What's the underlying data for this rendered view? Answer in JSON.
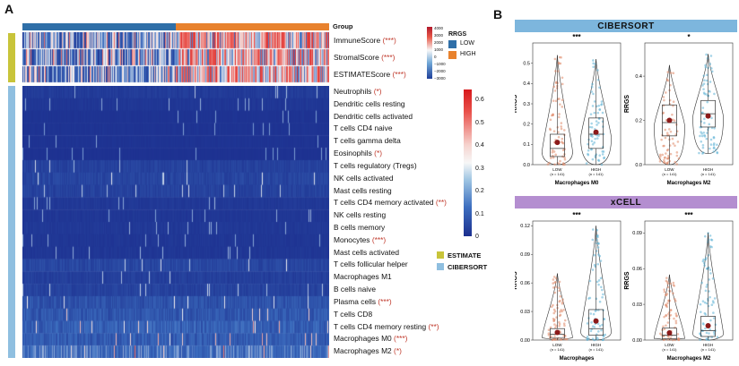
{
  "panel_a": {
    "letter": "A",
    "group_label": "Group",
    "score_rows": [
      {
        "name": "ImmuneScore",
        "sig": "(***)"
      },
      {
        "name": "StromalScore",
        "sig": "(***)"
      },
      {
        "name": "ESTIMATEScore",
        "sig": "(***)"
      }
    ],
    "cell_rows": [
      {
        "name": "Neutrophils",
        "sig": "(*)"
      },
      {
        "name": "Dendritic cells resting",
        "sig": ""
      },
      {
        "name": "Dendritic cells activated",
        "sig": ""
      },
      {
        "name": "T cells CD4 naive",
        "sig": ""
      },
      {
        "name": "T cells gamma delta",
        "sig": ""
      },
      {
        "name": "Eosinophils",
        "sig": "(*)"
      },
      {
        "name": "T cells regulatory (Tregs)",
        "sig": ""
      },
      {
        "name": "NK cells activated",
        "sig": ""
      },
      {
        "name": "Mast cells resting",
        "sig": ""
      },
      {
        "name": "T cells CD4 memory activated",
        "sig": "(**)"
      },
      {
        "name": "NK cells resting",
        "sig": ""
      },
      {
        "name": "B cells memory",
        "sig": ""
      },
      {
        "name": "Monocytes",
        "sig": "(***)"
      },
      {
        "name": "Mast cells activated",
        "sig": ""
      },
      {
        "name": "T cells follicular helper",
        "sig": ""
      },
      {
        "name": "Macrophages M1",
        "sig": ""
      },
      {
        "name": "B cells naive",
        "sig": ""
      },
      {
        "name": "Plasma cells",
        "sig": "(***)"
      },
      {
        "name": "T cells CD8",
        "sig": ""
      },
      {
        "name": "T cells CD4 memory resting",
        "sig": "(**)"
      },
      {
        "name": "Macrophages M0",
        "sig": "(***)"
      },
      {
        "name": "Macrophages M2",
        "sig": "(*)"
      }
    ],
    "rrgs_legend": {
      "title": "RRGS",
      "low": "LOW",
      "high": "HIGH",
      "low_color": "#2f6fa8",
      "high_color": "#e8822e"
    },
    "score_scale_ticks": [
      "4000",
      "3000",
      "2000",
      "1000",
      "0",
      "−1000",
      "−2000",
      "−3000"
    ],
    "cell_scale_ticks": [
      "0.6",
      "0.5",
      "0.4",
      "0.3",
      "0.2",
      "0.1",
      "0"
    ],
    "source_legend": [
      {
        "label": "ESTIMATE",
        "color": "#c8c43a"
      },
      {
        "label": "CIBERSORT",
        "color": "#8fbfe0"
      }
    ]
  },
  "panel_b": {
    "letter": "B",
    "cibersort_header": "CIBERSORT",
    "xcell_header": "xCELL",
    "cibersort_color": "#7db6dd",
    "xcell_color": "#b48ed0",
    "low_color": "#e08a6a",
    "high_color": "#5fb3d6",
    "x_categories": [
      "LOW",
      "HIGH"
    ],
    "n_labels": [
      "(n = 141)",
      "(n = 141)"
    ],
    "ylabel": "RRGS"
  },
  "chart_data": [
    {
      "type": "box",
      "title": "Macrophages M0",
      "group": "CIBERSORT",
      "significance": "***",
      "categories": [
        "LOW",
        "HIGH"
      ],
      "yticks": [
        "0.5",
        "0.4",
        "0.3",
        "0.2",
        "0.1",
        "0.0"
      ],
      "ylim": [
        0,
        0.6
      ],
      "median": [
        0.08,
        0.15
      ],
      "q1": [
        0.04,
        0.08
      ],
      "q3": [
        0.15,
        0.23
      ],
      "whisker_low": [
        0.0,
        0.0
      ],
      "whisker_high": [
        0.54,
        0.52
      ],
      "mean": [
        0.11,
        0.16
      ]
    },
    {
      "type": "box",
      "title": "Macrophages M2",
      "group": "CIBERSORT",
      "significance": "*",
      "categories": [
        "LOW",
        "HIGH"
      ],
      "yticks": [
        "0.4",
        "0.2",
        "0.0"
      ],
      "ylim": [
        0,
        0.55
      ],
      "median": [
        0.19,
        0.23
      ],
      "q1": [
        0.13,
        0.17
      ],
      "q3": [
        0.27,
        0.29
      ],
      "whisker_low": [
        0.0,
        0.05
      ],
      "whisker_high": [
        0.45,
        0.5
      ],
      "mean": [
        0.2,
        0.22
      ]
    },
    {
      "type": "box",
      "title": "Macrophages",
      "group": "xCELL",
      "significance": "***",
      "categories": [
        "LOW",
        "HIGH"
      ],
      "yticks": [
        "0.12",
        "0.09",
        "0.06",
        "0.03",
        "0.00"
      ],
      "ylim": [
        0,
        0.125
      ],
      "median": [
        0.006,
        0.012
      ],
      "q1": [
        0.002,
        0.005
      ],
      "q3": [
        0.012,
        0.032
      ],
      "whisker_low": [
        0.0,
        0.0
      ],
      "whisker_high": [
        0.07,
        0.12
      ],
      "mean": [
        0.008,
        0.02
      ]
    },
    {
      "type": "box",
      "title": "Macrophages M2",
      "group": "xCELL",
      "significance": "***",
      "categories": [
        "LOW",
        "HIGH"
      ],
      "yticks": [
        "0.09",
        "0.06",
        "0.03",
        "0.00"
      ],
      "ylim": [
        0,
        0.1
      ],
      "median": [
        0.004,
        0.008
      ],
      "q1": [
        0.001,
        0.003
      ],
      "q3": [
        0.01,
        0.02
      ],
      "whisker_low": [
        0.0,
        0.0
      ],
      "whisker_high": [
        0.055,
        0.09
      ],
      "mean": [
        0.006,
        0.012
      ]
    }
  ]
}
